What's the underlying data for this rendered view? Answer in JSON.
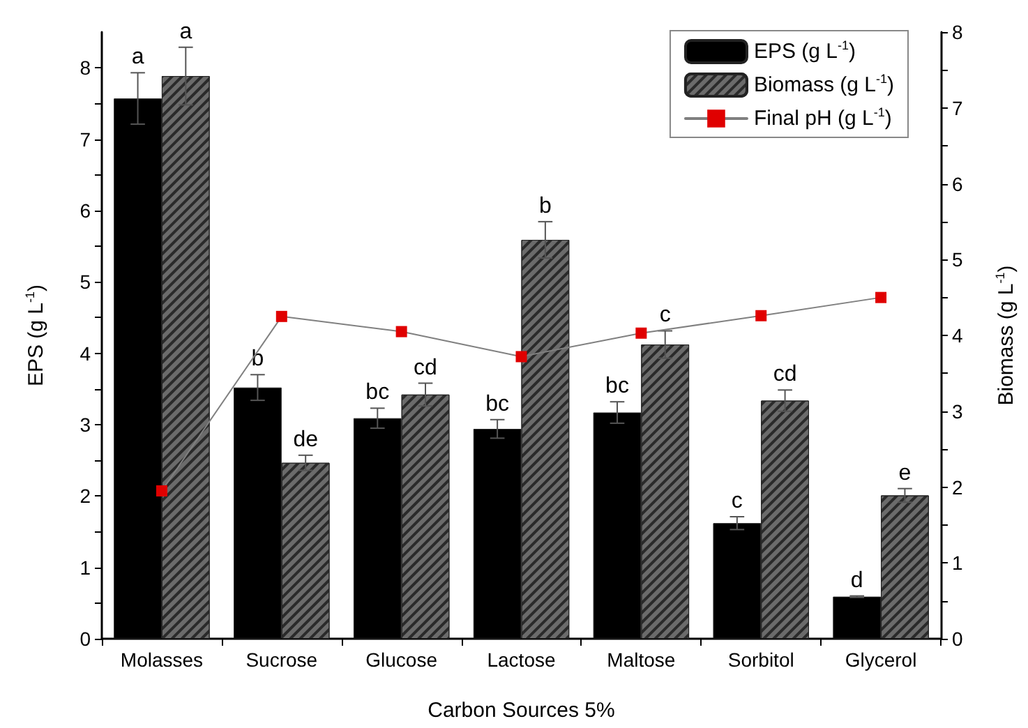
{
  "chart_data": {
    "type": "bar",
    "xlabel": "Carbon Sources 5%",
    "ylabel": "EPS (g L$^{-1}$)",
    "y2label": "Biomass (g L$^{-1}$)",
    "categories": [
      "Molasses",
      "Sucrose",
      "Glucose",
      "Lactose",
      "Maltose",
      "Sorbitol",
      "Glycerol"
    ],
    "series": [
      {
        "name": "EPS (g L$^{-1}$)",
        "color": "#000000",
        "values": [
          7.57,
          3.52,
          3.09,
          2.94,
          3.17,
          1.62,
          0.59
        ],
        "errors": [
          0.36,
          0.18,
          0.14,
          0.13,
          0.15,
          0.09,
          0.01
        ],
        "value_labels": [
          "a",
          "b",
          "bc",
          "bc",
          "bc",
          "c",
          "d"
        ]
      },
      {
        "name": "Biomass (g L$^{-1}$)",
        "color": "#6b6b6b",
        "axis": "y2",
        "values": [
          7.42,
          2.32,
          3.22,
          5.26,
          3.88,
          3.14,
          1.89
        ],
        "errors": [
          0.38,
          0.1,
          0.15,
          0.24,
          0.18,
          0.14,
          0.09
        ],
        "value_labels": [
          "a",
          "de",
          "cd",
          "b",
          "c",
          "cd",
          "e"
        ]
      },
      {
        "name": "Final pH (g L$^{-1}$)",
        "type": "line",
        "color": "#e00000",
        "axis": "y2",
        "values": [
          1.95,
          4.25,
          4.05,
          3.72,
          4.03,
          4.26,
          4.5
        ]
      }
    ],
    "ylim": [
      0,
      8.5
    ],
    "yticks": [
      0,
      {
        "value": 0.5,
        "label": null
      },
      1,
      {
        "value": 1.5,
        "label": null
      },
      2,
      {
        "value": 2.5,
        "label": null
      },
      3,
      {
        "value": 3.5,
        "label": null
      },
      4,
      {
        "value": 4.5,
        "label": null
      },
      5,
      {
        "value": 5.5,
        "label": null
      },
      6,
      {
        "value": 6.5,
        "label": null
      },
      7,
      {
        "value": 7.5,
        "label": null
      },
      8
    ],
    "y2lim": [
      0,
      8
    ],
    "y2ticks": [
      0,
      {
        "value": 0.5,
        "label": null
      },
      1,
      {
        "value": 1.5,
        "label": null
      },
      2,
      {
        "value": 2.5,
        "label": null
      },
      3,
      {
        "value": 3.5,
        "label": null
      },
      4,
      {
        "value": 4.5,
        "label": null
      },
      5,
      {
        "value": 5.5,
        "label": null
      },
      6,
      {
        "value": 6.5,
        "label": null
      },
      7,
      {
        "value": 7.5,
        "label": null
      },
      8
    ],
    "marker": "square",
    "line_style": "solid",
    "grid": false,
    "legend": "top right"
  }
}
